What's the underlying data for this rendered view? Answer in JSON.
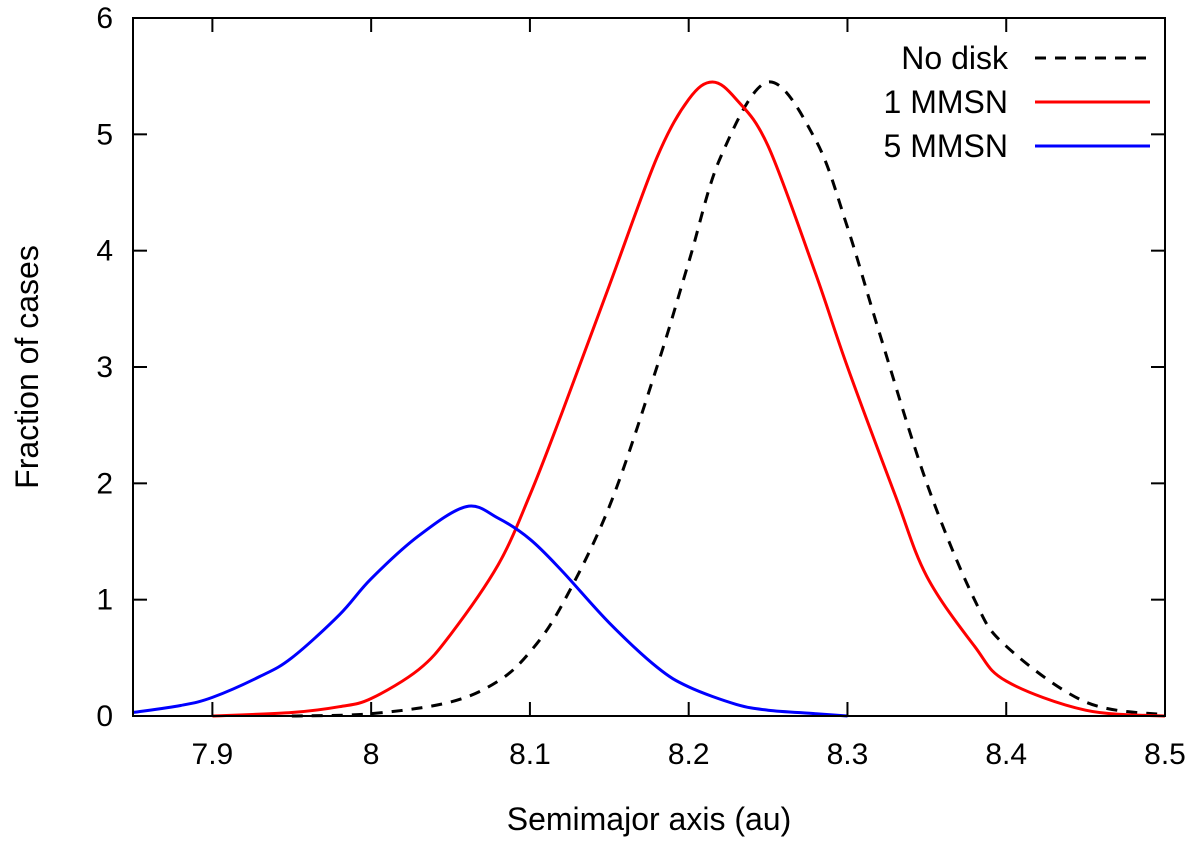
{
  "chart_data": {
    "type": "line",
    "xlabel": "Semimajor axis (au)",
    "ylabel": "Fraction of cases",
    "xlim": [
      7.85,
      8.5
    ],
    "ylim": [
      0,
      6
    ],
    "xticks": [
      7.9,
      8.0,
      8.1,
      8.2,
      8.3,
      8.4,
      8.5
    ],
    "xtick_labels": [
      "7.9",
      "8",
      "8.1",
      "8.2",
      "8.3",
      "8.4",
      "8.5"
    ],
    "yticks": [
      0,
      1,
      2,
      3,
      4,
      5,
      6
    ],
    "ytick_labels": [
      "0",
      "1",
      "2",
      "3",
      "4",
      "5",
      "6"
    ],
    "grid": false,
    "legend_position": "top-right",
    "series": [
      {
        "name": "No disk",
        "color": "#000000",
        "dash": "dashed",
        "x": [
          7.95,
          8.0,
          8.05,
          8.08,
          8.1,
          8.12,
          8.15,
          8.18,
          8.2,
          8.22,
          8.25,
          8.28,
          8.3,
          8.32,
          8.35,
          8.38,
          8.4,
          8.45,
          8.5
        ],
        "y": [
          0.0,
          0.02,
          0.12,
          0.3,
          0.55,
          0.95,
          1.8,
          3.0,
          3.9,
          4.8,
          5.45,
          4.95,
          4.2,
          3.3,
          2.0,
          1.0,
          0.6,
          0.12,
          0.01
        ]
      },
      {
        "name": "1 MMSN",
        "color": "#ff0000",
        "dash": "solid",
        "x": [
          7.9,
          7.95,
          7.98,
          8.0,
          8.03,
          8.05,
          8.08,
          8.1,
          8.12,
          8.15,
          8.18,
          8.2,
          8.215,
          8.23,
          8.25,
          8.28,
          8.3,
          8.33,
          8.35,
          8.38,
          8.4,
          8.45,
          8.5
        ],
        "y": [
          0.0,
          0.03,
          0.08,
          0.15,
          0.4,
          0.7,
          1.3,
          1.9,
          2.6,
          3.7,
          4.8,
          5.3,
          5.45,
          5.3,
          4.9,
          3.8,
          3.0,
          1.9,
          1.2,
          0.6,
          0.3,
          0.05,
          0.0
        ]
      },
      {
        "name": "5 MMSN",
        "color": "#0000ff",
        "dash": "solid",
        "x": [
          7.85,
          7.88,
          7.9,
          7.93,
          7.95,
          7.98,
          8.0,
          8.03,
          8.06,
          8.08,
          8.1,
          8.12,
          8.15,
          8.18,
          8.2,
          8.23,
          8.25,
          8.28,
          8.3
        ],
        "y": [
          0.03,
          0.09,
          0.16,
          0.34,
          0.5,
          0.87,
          1.18,
          1.55,
          1.8,
          1.7,
          1.52,
          1.25,
          0.8,
          0.42,
          0.25,
          0.1,
          0.05,
          0.02,
          0.0
        ]
      }
    ]
  }
}
